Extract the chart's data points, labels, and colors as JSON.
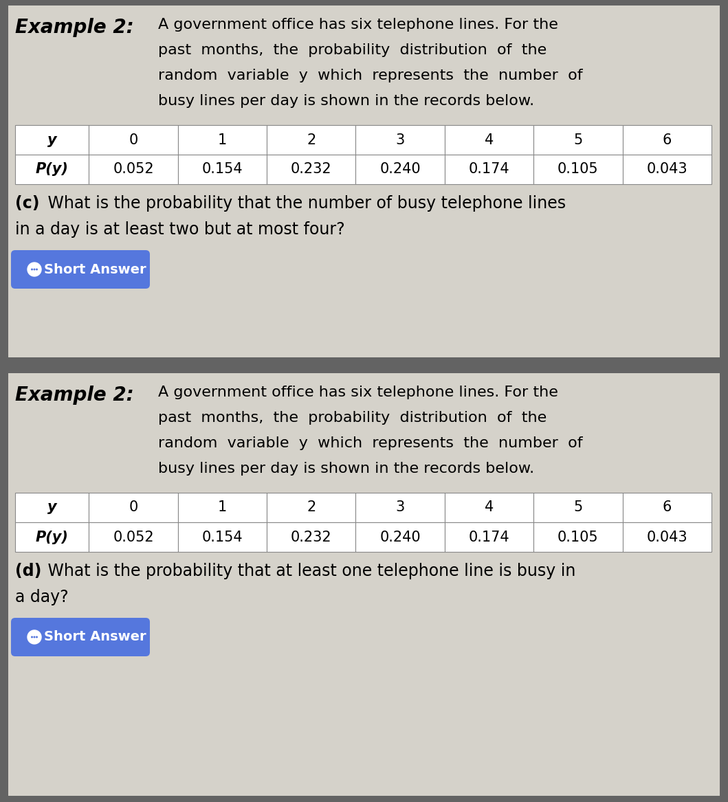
{
  "bg_outer": "#636363",
  "bg_card": "#d5d2ca",
  "table_border": "#888888",
  "button_color": "#5577dd",
  "button_text_color": "#ffffff",
  "y_values": [
    "y",
    "0",
    "1",
    "2",
    "3",
    "4",
    "5",
    "6"
  ],
  "py_values": [
    "P(y)",
    "0.052",
    "0.154",
    "0.232",
    "0.240",
    "0.174",
    "0.105",
    "0.043"
  ],
  "desc_line1": "A government office has six telephone lines. For the",
  "desc_line2": "past  months,  the  probability  distribution  of  the",
  "desc_line3": "random  variable  y  which  represents  the  number  of",
  "desc_line4": "busy lines per day is shown in the records below.",
  "question_c_bold": "(c)",
  "question_c_rest": " What is the probability that the number of busy telephone lines",
  "question_c_line2": "in a day is at least two but at most four?",
  "question_d_bold": "(d)",
  "question_d_rest": " What is the probability that at least one telephone line is busy in",
  "question_d_line2": "a day?",
  "short_answer": "Short Answer",
  "example_label": "Example 2:"
}
